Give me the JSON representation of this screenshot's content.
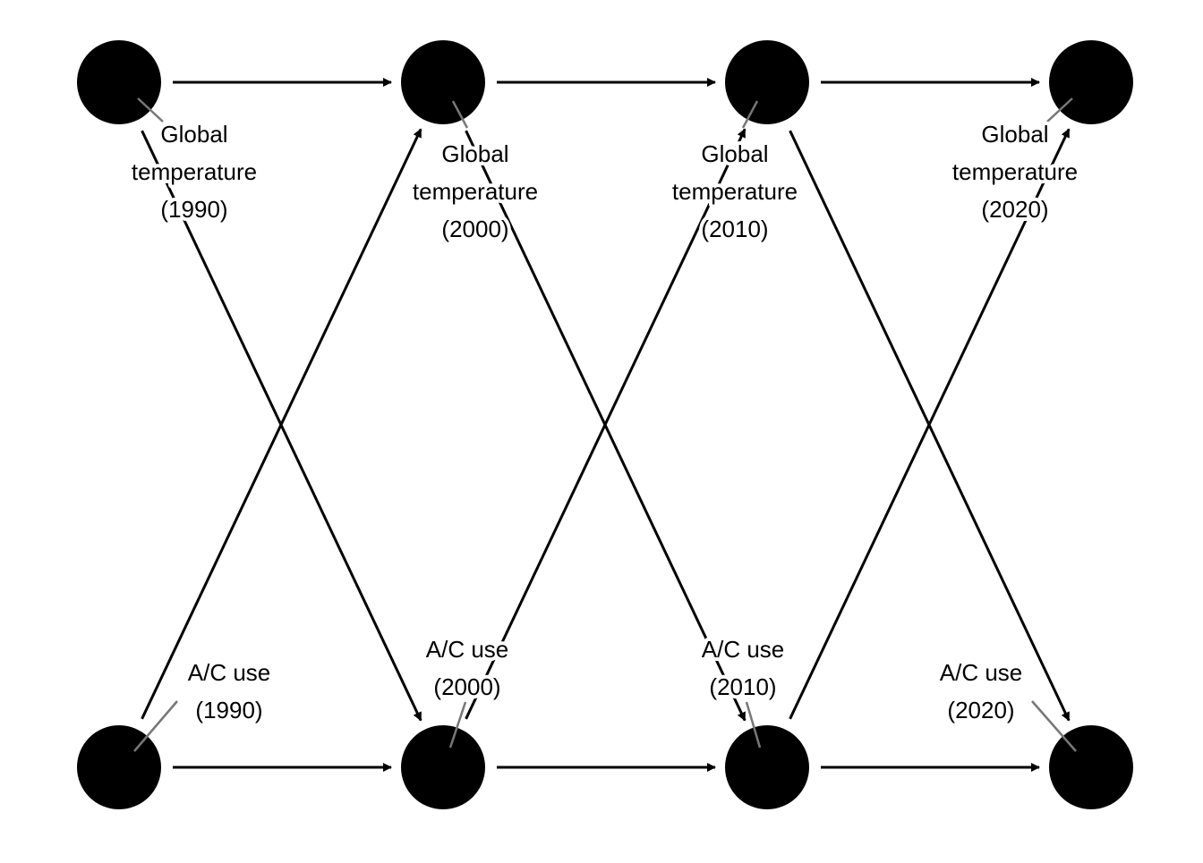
{
  "colors": {
    "node": "#000000",
    "edge": "#000000",
    "leader": "#777777",
    "background": "#ffffff"
  },
  "nodes": [
    {
      "id": "temp1990",
      "lines": [
        "Global",
        "temperature",
        "(1990)"
      ]
    },
    {
      "id": "temp2000",
      "lines": [
        "Global",
        "temperature",
        "(2000)"
      ]
    },
    {
      "id": "temp2010",
      "lines": [
        "Global",
        "temperature",
        "(2010)"
      ]
    },
    {
      "id": "temp2020",
      "lines": [
        "Global",
        "temperature",
        "(2020)"
      ]
    },
    {
      "id": "ac1990",
      "lines": [
        "A/C use",
        "(1990)"
      ]
    },
    {
      "id": "ac2000",
      "lines": [
        "A/C use",
        "(2000)"
      ]
    },
    {
      "id": "ac2010",
      "lines": [
        "A/C use",
        "(2010)"
      ]
    },
    {
      "id": "ac2020",
      "lines": [
        "A/C use",
        "(2020)"
      ]
    }
  ],
  "edges": [
    {
      "from": "temp1990",
      "to": "temp2000"
    },
    {
      "from": "temp2000",
      "to": "temp2010"
    },
    {
      "from": "temp2010",
      "to": "temp2020"
    },
    {
      "from": "ac1990",
      "to": "ac2000"
    },
    {
      "from": "ac2000",
      "to": "ac2010"
    },
    {
      "from": "ac2010",
      "to": "ac2020"
    },
    {
      "from": "temp1990",
      "to": "ac2000"
    },
    {
      "from": "ac1990",
      "to": "temp2000"
    },
    {
      "from": "temp2000",
      "to": "ac2010"
    },
    {
      "from": "ac2000",
      "to": "temp2010"
    },
    {
      "from": "temp2010",
      "to": "ac2020"
    },
    {
      "from": "ac2010",
      "to": "temp2020"
    }
  ]
}
